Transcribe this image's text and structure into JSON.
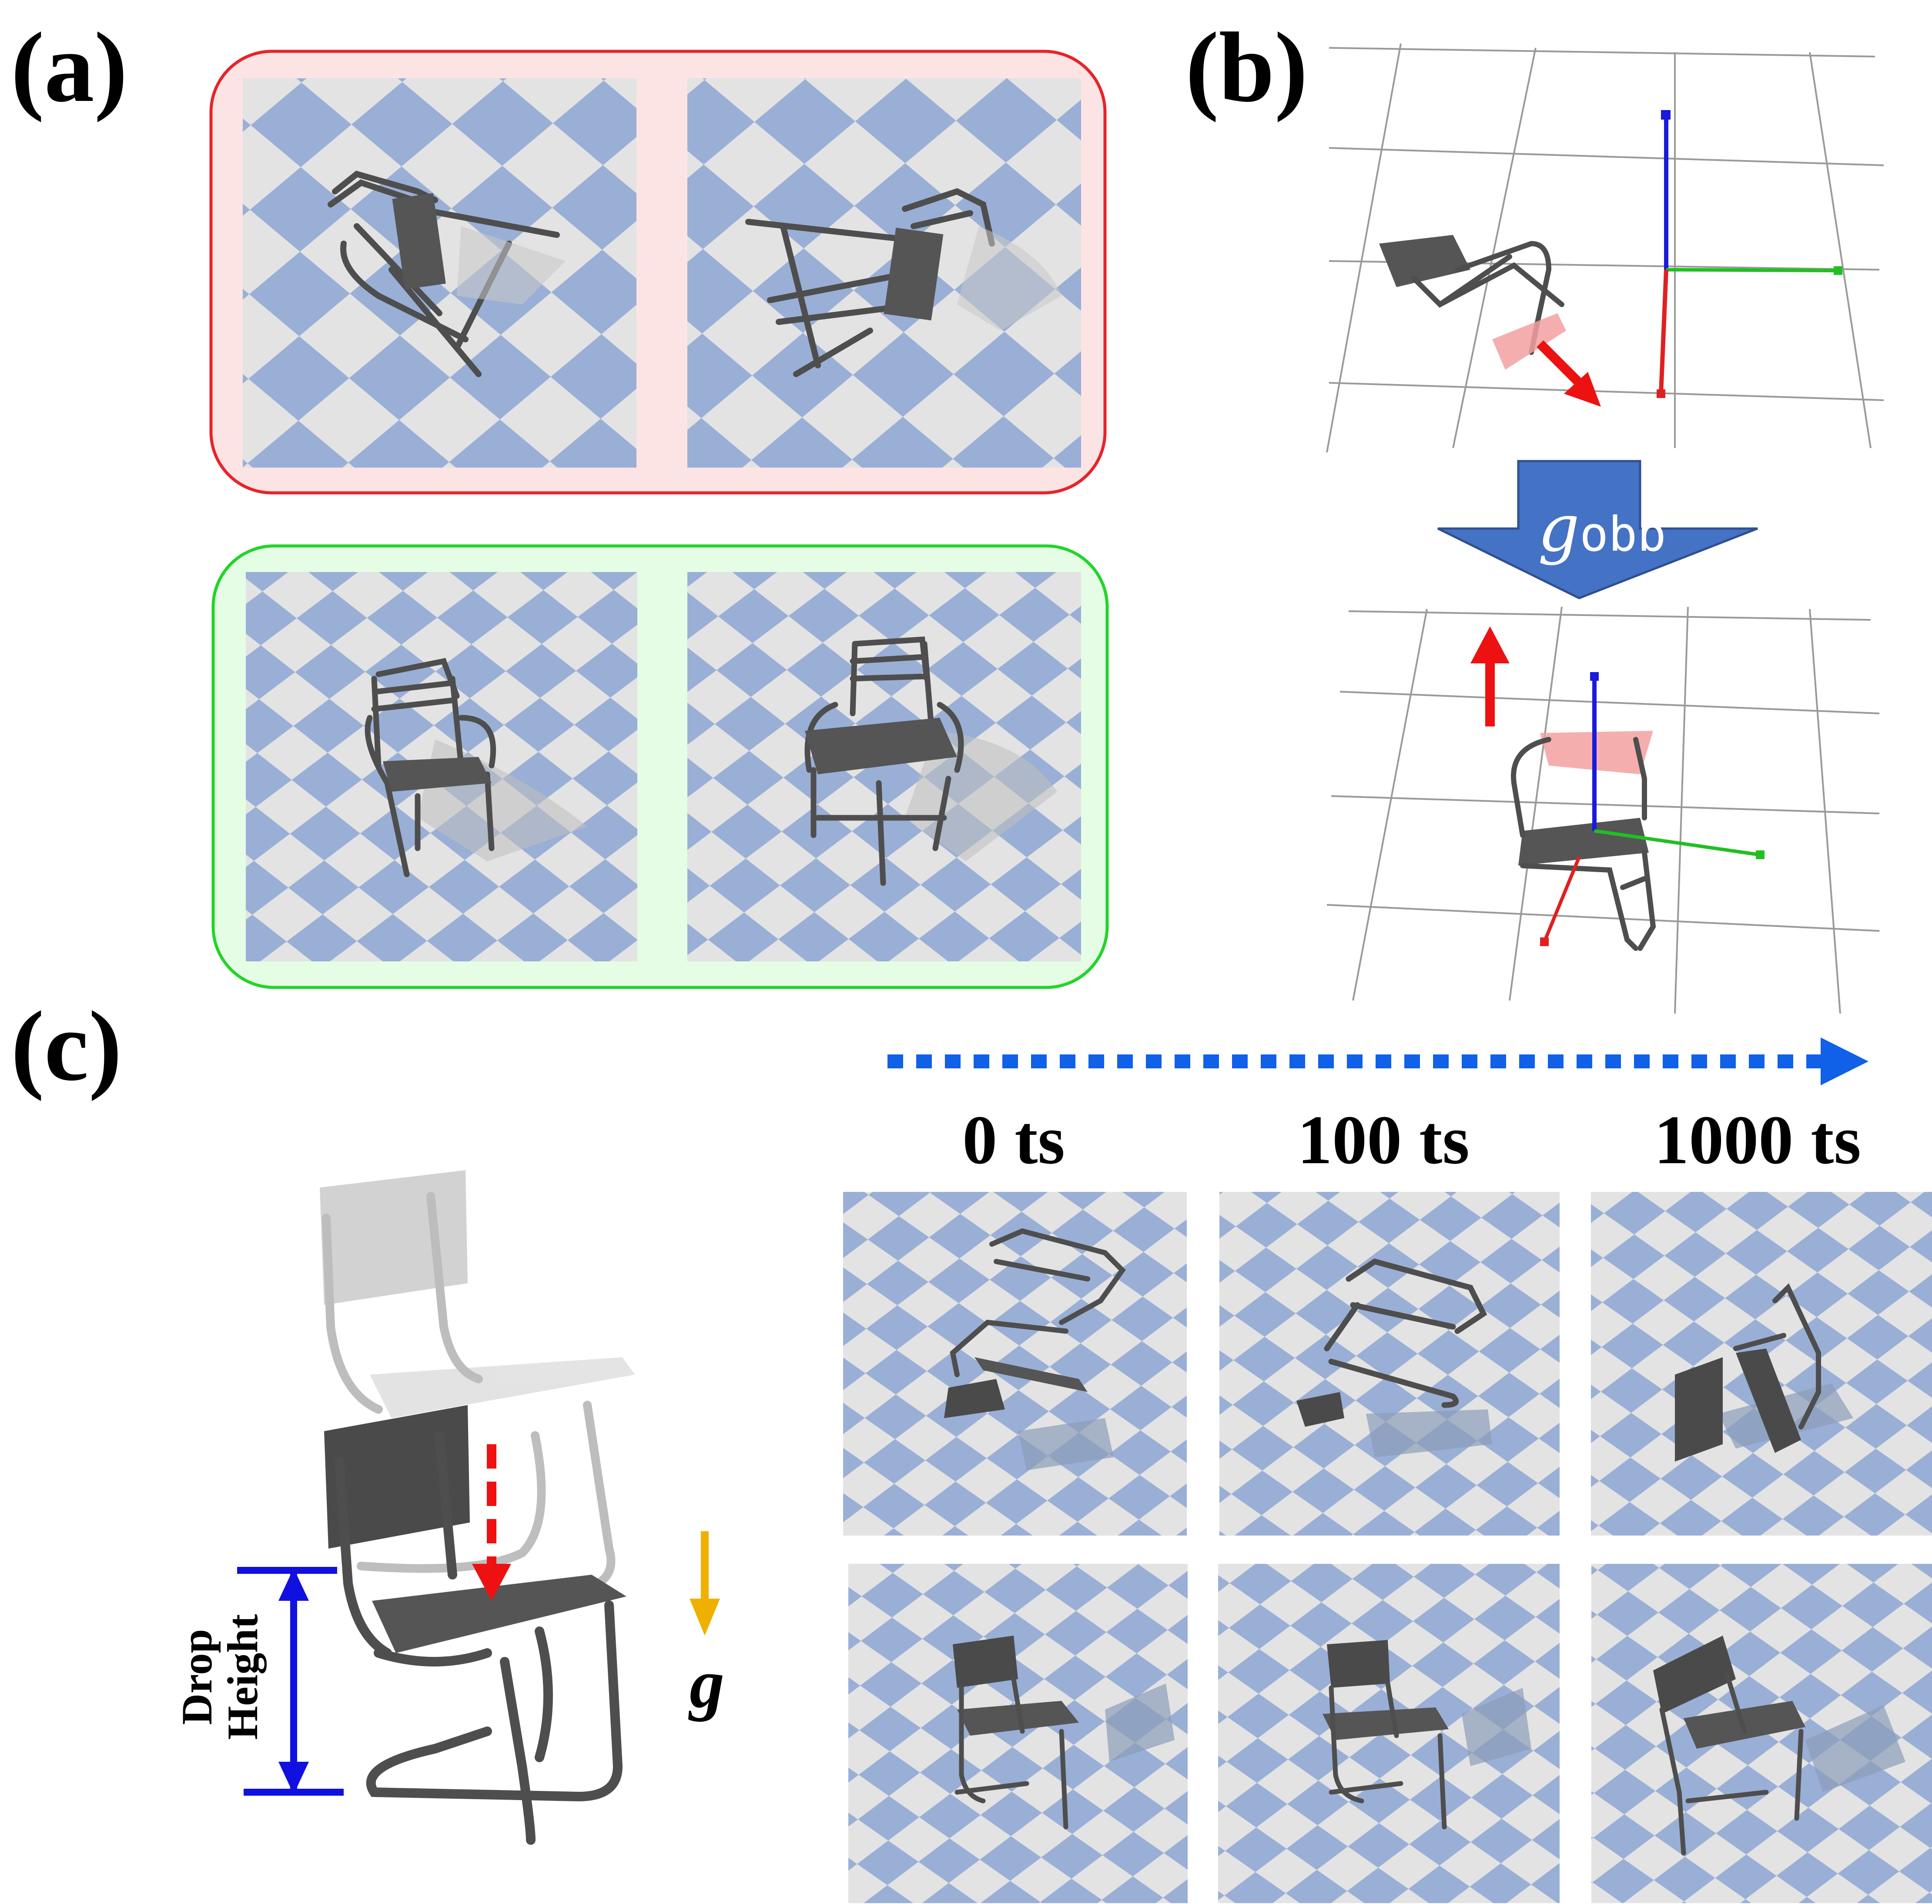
{
  "panels": {
    "a": {
      "label": "(a)"
    },
    "b": {
      "label": "(b)",
      "transform_label_main": "g",
      "transform_label_sub": "obb"
    },
    "c": {
      "label": "(c)",
      "drop_label_line1": "Drop",
      "drop_label_line2": "Height",
      "gravity_label": "g",
      "timesteps": [
        "0 ts",
        "100 ts",
        "1000 ts"
      ]
    }
  },
  "colors": {
    "checker_blue": "#9aafd6",
    "checker_light": "#e3e3e3",
    "fail_border": "#e8232a",
    "fail_fill": "#fde4e4",
    "pass_border": "#22d42a",
    "pass_fill": "#e4fde4",
    "axis_x": "#e02020",
    "axis_y": "#20c020",
    "axis_z": "#1a1adc",
    "arrow_red": "#ee1111",
    "big_arrow": "#4472c4",
    "timeline": "#1060e8",
    "drop_bar": "#1010e0",
    "gravity": "#f0b000"
  }
}
